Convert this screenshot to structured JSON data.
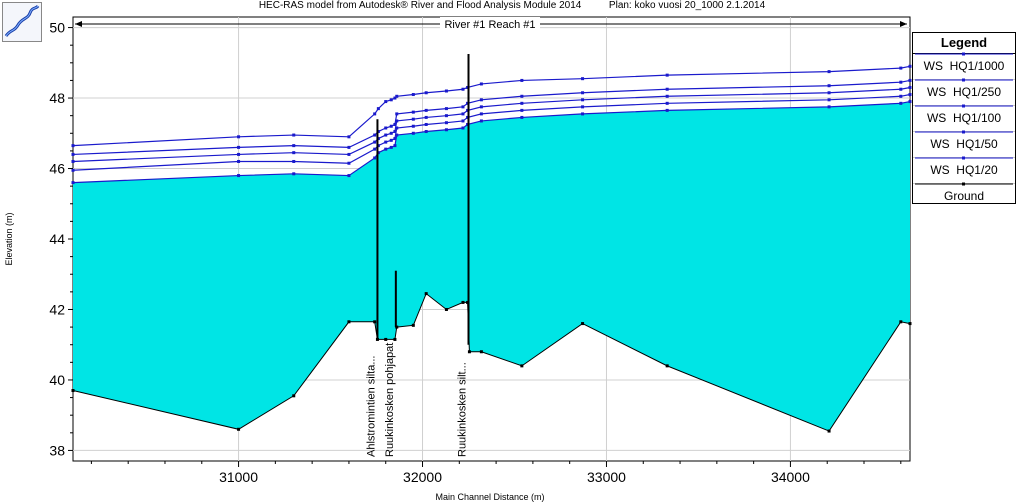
{
  "header": {
    "title": "HEC-RAS model from Autodesk® River and Flood Analysis Module 2014",
    "plan": "Plan: koko vuosi 20_1000    2.1.2014"
  },
  "chart_data": {
    "type": "area",
    "title": "River #1 Reach #1",
    "xlabel": "Main Channel Distance (m)",
    "ylabel": "Elevation (m)",
    "xlim": [
      30100,
      34650
    ],
    "ylim": [
      37.7,
      50.3
    ],
    "xticks": [
      "31000",
      "32000",
      "33000",
      "34000"
    ],
    "xtick_values": [
      31000,
      32000,
      33000,
      34000
    ],
    "yticks": [
      "38",
      "40",
      "42",
      "44",
      "46",
      "48",
      "50"
    ],
    "ytick_values": [
      38,
      40,
      42,
      44,
      46,
      48,
      50
    ],
    "grid": true,
    "legend": {
      "title": "Legend",
      "placement": "right",
      "entries": [
        "WS  HQ1/1000",
        "WS  HQ1/250",
        "WS  HQ1/100",
        "WS  HQ1/50",
        "WS  HQ1/20",
        "Ground"
      ]
    },
    "colors": {
      "water": "#00e5e5",
      "ws_line": "#1a1acc",
      "ground": "#000000"
    },
    "ground": {
      "name": "Ground",
      "x": [
        30100,
        31000,
        31300,
        31600,
        31740,
        31755,
        31800,
        31850,
        31860,
        31950,
        32020,
        32130,
        32220,
        32245,
        32255,
        32320,
        32540,
        32870,
        33330,
        34210,
        34600,
        34650
      ],
      "y": [
        39.7,
        38.6,
        39.55,
        41.65,
        41.65,
        41.15,
        41.15,
        41.15,
        41.5,
        41.55,
        42.45,
        42.0,
        42.2,
        42.2,
        40.8,
        40.8,
        40.4,
        41.6,
        40.4,
        38.55,
        41.65,
        41.6
      ]
    },
    "series": [
      {
        "name": "WS  HQ1/1000",
        "x": [
          30100,
          31000,
          31300,
          31600,
          31740,
          31760,
          31800,
          31830,
          31850,
          31860,
          31950,
          32020,
          32130,
          32220,
          32245,
          32320,
          32540,
          32870,
          33330,
          34210,
          34600,
          34650
        ],
        "y": [
          46.65,
          46.9,
          46.95,
          46.9,
          47.55,
          47.7,
          47.9,
          47.95,
          48.0,
          48.05,
          48.1,
          48.15,
          48.2,
          48.25,
          48.3,
          48.4,
          48.5,
          48.55,
          48.65,
          48.75,
          48.85,
          48.9
        ]
      },
      {
        "name": "WS  HQ1/250",
        "x": [
          30100,
          31000,
          31300,
          31600,
          31740,
          31760,
          31800,
          31830,
          31850,
          31860,
          31950,
          32020,
          32130,
          32220,
          32245,
          32320,
          32540,
          32870,
          33330,
          34210,
          34600,
          34650
        ],
        "y": [
          46.4,
          46.6,
          46.65,
          46.6,
          46.95,
          47.05,
          47.15,
          47.2,
          47.25,
          47.55,
          47.6,
          47.65,
          47.7,
          47.75,
          47.85,
          47.95,
          48.05,
          48.15,
          48.25,
          48.35,
          48.45,
          48.5
        ]
      },
      {
        "name": "WS  HQ1/100",
        "x": [
          30100,
          31000,
          31300,
          31600,
          31740,
          31760,
          31800,
          31830,
          31850,
          31860,
          31950,
          32020,
          32130,
          32220,
          32245,
          32320,
          32540,
          32870,
          33330,
          34210,
          34600,
          34650
        ],
        "y": [
          46.2,
          46.4,
          46.45,
          46.4,
          46.75,
          46.85,
          46.95,
          47.0,
          47.05,
          47.35,
          47.4,
          47.45,
          47.5,
          47.55,
          47.65,
          47.75,
          47.85,
          47.95,
          48.05,
          48.15,
          48.25,
          48.3
        ]
      },
      {
        "name": "WS  HQ1/50",
        "x": [
          30100,
          31000,
          31300,
          31600,
          31740,
          31760,
          31800,
          31830,
          31850,
          31860,
          31950,
          32020,
          32130,
          32220,
          32245,
          32320,
          32540,
          32870,
          33330,
          34210,
          34600,
          34650
        ],
        "y": [
          45.95,
          46.2,
          46.2,
          46.15,
          46.55,
          46.65,
          46.75,
          46.8,
          46.85,
          47.15,
          47.2,
          47.25,
          47.3,
          47.35,
          47.45,
          47.55,
          47.65,
          47.75,
          47.85,
          47.95,
          48.05,
          48.1
        ]
      },
      {
        "name": "WS  HQ1/20",
        "x": [
          30100,
          31000,
          31300,
          31600,
          31740,
          31760,
          31800,
          31830,
          31850,
          31860,
          31950,
          32020,
          32130,
          32220,
          32245,
          32320,
          32540,
          32870,
          33330,
          34210,
          34600,
          34650
        ],
        "y": [
          45.6,
          45.8,
          45.85,
          45.8,
          46.3,
          46.45,
          46.55,
          46.6,
          46.65,
          46.95,
          47.0,
          47.05,
          47.1,
          47.15,
          47.25,
          47.35,
          47.45,
          47.55,
          47.65,
          47.75,
          47.85,
          47.9
        ]
      }
    ],
    "structures": [
      {
        "label": "Ahlstromintien silta...",
        "x": 31755,
        "y_top": 47.4,
        "y_bottom": 41.15
      },
      {
        "label": "Ruukinkosken pohjapat",
        "x": 31855,
        "y_top": 43.1,
        "y_bottom": 41.5
      },
      {
        "label": "Ruukinkosken silt...",
        "x": 32250,
        "y_top": 49.25,
        "y_bottom": 41.0
      }
    ]
  }
}
